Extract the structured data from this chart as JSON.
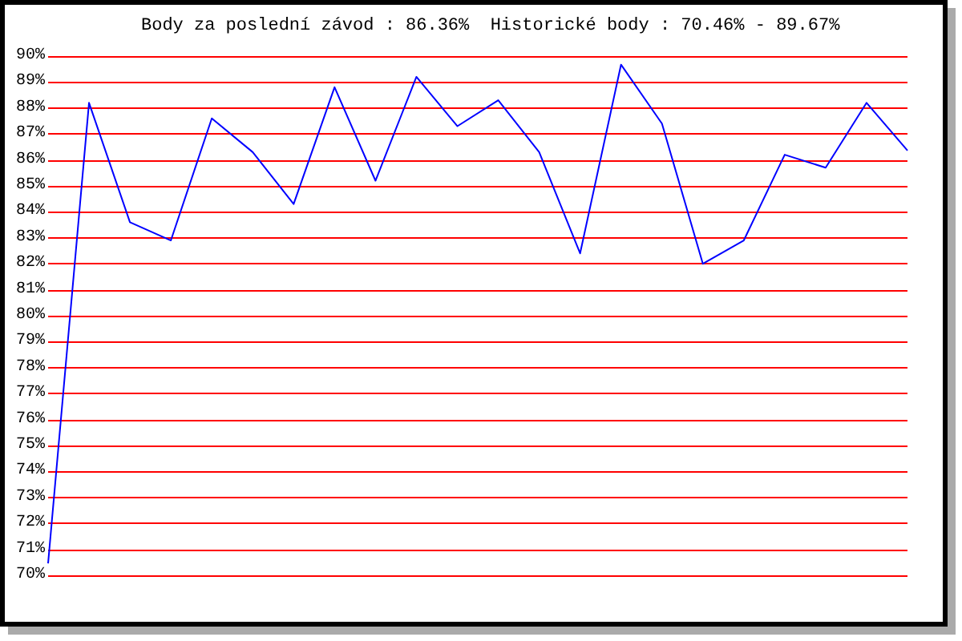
{
  "chart_data": {
    "type": "line",
    "title": "Body za poslední závod : 86.36%  Historické body : 70.46% - 89.67%",
    "categories": [
      null,
      null,
      null,
      null,
      null,
      null,
      null,
      null,
      null,
      null,
      null,
      null,
      null,
      null,
      null,
      null,
      null,
      null,
      null,
      null,
      null,
      null
    ],
    "series": [
      {
        "color": "#0000ff",
        "values": [
          70.46,
          88.2,
          83.6,
          82.9,
          87.6,
          86.3,
          84.3,
          88.8,
          85.2,
          89.2,
          87.3,
          88.3,
          86.3,
          82.4,
          89.67,
          87.4,
          82.0,
          82.9,
          86.2,
          85.7,
          88.2,
          86.36
        ]
      }
    ],
    "ylim": [
      70,
      90
    ],
    "yticks": [
      {
        "value": 70,
        "label": "70%"
      },
      {
        "value": 71,
        "label": "71%"
      },
      {
        "value": 72,
        "label": "72%"
      },
      {
        "value": 73,
        "label": "73%"
      },
      {
        "value": 74,
        "label": "74%"
      },
      {
        "value": 75,
        "label": "75%"
      },
      {
        "value": 76,
        "label": "76%"
      },
      {
        "value": 77,
        "label": "77%"
      },
      {
        "value": 78,
        "label": "78%"
      },
      {
        "value": 79,
        "label": "79%"
      },
      {
        "value": 80,
        "label": "80%"
      },
      {
        "value": 81,
        "label": "81%"
      },
      {
        "value": 82,
        "label": "82%"
      },
      {
        "value": 83,
        "label": "83%"
      },
      {
        "value": 84,
        "label": "84%"
      },
      {
        "value": 85,
        "label": "85%"
      },
      {
        "value": 86,
        "label": "86%"
      },
      {
        "value": 87,
        "label": "87%"
      },
      {
        "value": 88,
        "label": "88%"
      },
      {
        "value": 89,
        "label": "89%"
      },
      {
        "value": 90,
        "label": "90%"
      }
    ],
    "tick_labels": "y",
    "grid": "y",
    "marker": "none",
    "line_style": "solid"
  }
}
